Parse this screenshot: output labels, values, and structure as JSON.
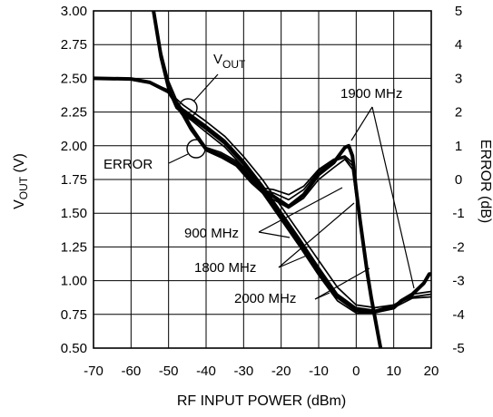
{
  "chart_data": {
    "type": "line",
    "xlabel": "RF INPUT POWER (dBm)",
    "ylabel": {
      "main": "V",
      "sub": "OUT",
      "unit": " (V)"
    },
    "y2label": "ERROR (dB)",
    "xlim": [
      -70,
      20
    ],
    "ylim": [
      0.5,
      3.0
    ],
    "y2lim": [
      -5,
      5
    ],
    "x_ticks": [
      "-70",
      "-60",
      "-50",
      "-40",
      "-30",
      "-20",
      "-10",
      "0",
      "10",
      "20"
    ],
    "y_ticks": [
      "0.50",
      "0.75",
      "1.00",
      "1.25",
      "1.50",
      "1.75",
      "2.00",
      "2.25",
      "2.50",
      "2.75",
      "3.00"
    ],
    "y2_ticks": [
      "-5",
      "-4",
      "-3",
      "-2",
      "-1",
      "0",
      "1",
      "2",
      "3",
      "4",
      "5"
    ],
    "grid": true,
    "annotations": {
      "vout": {
        "main": "V",
        "sub": "OUT"
      },
      "error": "ERROR",
      "f900": "900 MHz",
      "f1800": "1800 MHz",
      "f1900": "1900 MHz",
      "f2000": "2000 MHz"
    },
    "series": [
      {
        "name": "900 MHz",
        "axis": "right",
        "kind": "error",
        "x": [
          -70,
          -60,
          -55,
          -50,
          -47,
          -44,
          -40,
          -36,
          -32,
          -28,
          -25,
          -22,
          -18,
          -14,
          -10,
          -6,
          -3,
          -1,
          0
        ],
        "y": [
          3.0,
          2.98,
          2.88,
          2.65,
          2.2,
          1.6,
          0.95,
          0.8,
          0.55,
          0.05,
          -0.25,
          -0.3,
          -0.45,
          -0.2,
          0.3,
          0.6,
          0.7,
          0.5,
          -0.3
        ]
      },
      {
        "name": "1800 MHz",
        "axis": "right",
        "kind": "error",
        "x": [
          -70,
          -60,
          -55,
          -50,
          -47,
          -44,
          -40,
          -36,
          -32,
          -28,
          -25,
          -22,
          -18,
          -14,
          -10,
          -6,
          -3,
          -1,
          0
        ],
        "y": [
          3.0,
          2.98,
          2.88,
          2.62,
          2.15,
          1.55,
          0.9,
          0.75,
          0.5,
          0.0,
          -0.3,
          -0.4,
          -0.6,
          -0.3,
          0.25,
          0.55,
          0.65,
          0.4,
          -0.2
        ]
      },
      {
        "name": "1900 MHz",
        "axis": "right",
        "kind": "error",
        "x": [
          -70,
          -60,
          -55,
          -50,
          -47,
          -44,
          -40,
          -36,
          -32,
          -28,
          -25,
          -22,
          -18,
          -14,
          -10,
          -6,
          -3,
          -2,
          -1,
          0,
          1,
          2,
          3,
          4,
          5,
          6,
          6.5
        ],
        "y": [
          3.0,
          2.98,
          2.88,
          2.6,
          2.1,
          1.5,
          0.9,
          0.7,
          0.45,
          -0.05,
          -0.35,
          -0.5,
          -0.8,
          -0.45,
          0.15,
          0.5,
          0.95,
          1.0,
          0.7,
          -0.3,
          -1.2,
          -2.0,
          -2.8,
          -3.5,
          -4.1,
          -4.7,
          -5.0
        ]
      },
      {
        "name": "2000 MHz",
        "axis": "right",
        "kind": "error",
        "x": [
          -70,
          -60,
          -55,
          -50,
          -47,
          -44,
          -40,
          -36,
          -32,
          -28,
          -25,
          -22,
          -18,
          -14,
          -10,
          -6,
          -3,
          -1,
          0,
          1
        ],
        "y": [
          3.0,
          2.98,
          2.88,
          2.58,
          2.05,
          1.45,
          0.85,
          0.65,
          0.4,
          -0.1,
          -0.4,
          -0.6,
          -0.85,
          -0.55,
          0.0,
          0.35,
          0.6,
          0.3,
          -0.5,
          -1.3
        ]
      },
      {
        "name": "900 MHz",
        "axis": "left",
        "kind": "vout",
        "x": [
          -54,
          -52,
          -50,
          -48,
          -46,
          -44,
          -40,
          -35,
          -30,
          -25,
          -20,
          -15,
          -10,
          -5,
          0,
          5,
          10,
          15,
          20
        ],
        "y": [
          3.0,
          2.7,
          2.48,
          2.35,
          2.3,
          2.26,
          2.18,
          2.07,
          1.92,
          1.75,
          1.55,
          1.35,
          1.15,
          0.95,
          0.82,
          0.8,
          0.82,
          0.88,
          0.9
        ]
      },
      {
        "name": "1800 MHz",
        "axis": "left",
        "kind": "vout",
        "x": [
          -54,
          -52,
          -50,
          -48,
          -46,
          -44,
          -40,
          -35,
          -30,
          -25,
          -20,
          -15,
          -10,
          -5,
          0,
          5,
          10,
          15,
          20
        ],
        "y": [
          3.0,
          2.68,
          2.45,
          2.32,
          2.27,
          2.23,
          2.15,
          2.04,
          1.89,
          1.71,
          1.51,
          1.31,
          1.1,
          0.9,
          0.8,
          0.78,
          0.82,
          0.9,
          0.92
        ]
      },
      {
        "name": "1900 MHz",
        "axis": "left",
        "kind": "vout",
        "x": [
          -54,
          -52,
          -50,
          -48,
          -46,
          -44,
          -40,
          -35,
          -30,
          -25,
          -20,
          -15,
          -10,
          -5,
          0,
          5,
          10,
          12,
          15,
          18,
          19.5,
          20
        ],
        "y": [
          3.0,
          2.66,
          2.43,
          2.3,
          2.25,
          2.21,
          2.13,
          2.02,
          1.87,
          1.68,
          1.48,
          1.28,
          1.07,
          0.88,
          0.78,
          0.77,
          0.8,
          0.85,
          0.9,
          0.98,
          1.05,
          1.05
        ]
      },
      {
        "name": "2000 MHz",
        "axis": "left",
        "kind": "vout",
        "x": [
          -54,
          -52,
          -50,
          -48,
          -46,
          -44,
          -40,
          -35,
          -30,
          -25,
          -20,
          -15,
          -10,
          -5,
          0,
          5,
          10,
          15,
          20
        ],
        "y": [
          3.0,
          2.64,
          2.41,
          2.28,
          2.23,
          2.19,
          2.1,
          1.99,
          1.84,
          1.65,
          1.45,
          1.25,
          1.04,
          0.85,
          0.76,
          0.76,
          0.8,
          0.87,
          0.88
        ]
      }
    ]
  }
}
